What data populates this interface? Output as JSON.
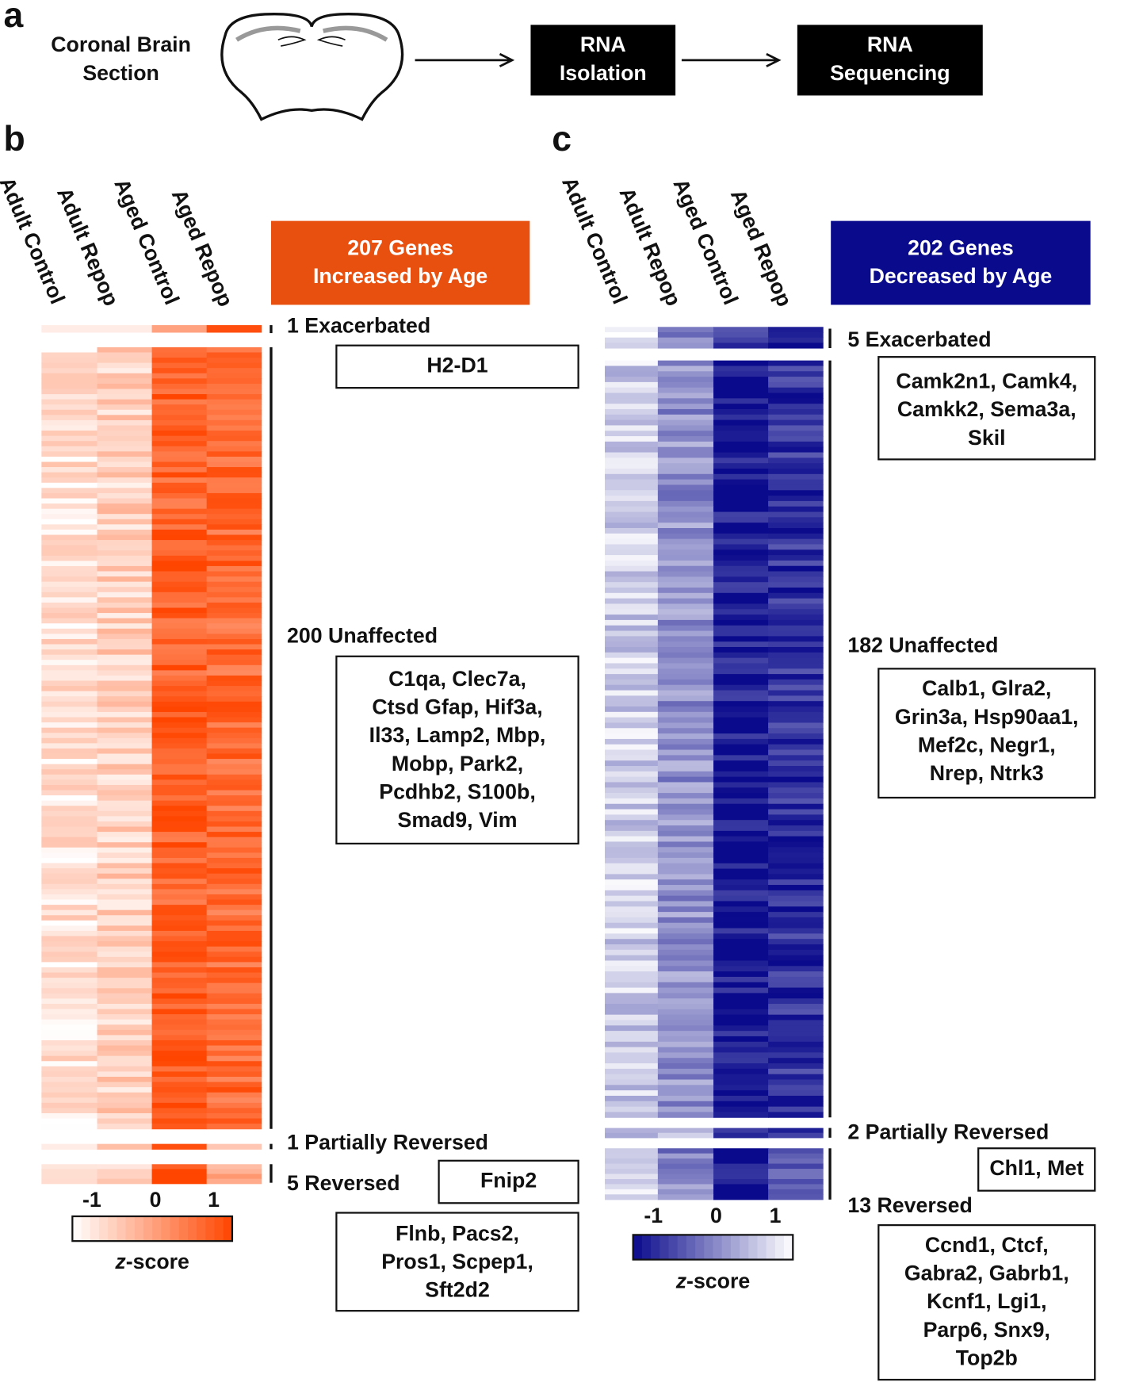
{
  "panel_a": {
    "label": "a",
    "source": [
      "Coronal Brain",
      "Section"
    ],
    "step1": [
      "RNA",
      "Isolation"
    ],
    "step2": [
      "RNA",
      "Sequencing"
    ]
  },
  "panel_b": {
    "label": "b",
    "columns": [
      "Adult Control",
      "Adult Repop",
      "Aged Control",
      "Aged Repop"
    ],
    "header": [
      "207 Genes",
      "Increased by Age"
    ],
    "groups": [
      {
        "label": "1 Exacerbated",
        "genes": [
          "H2-D1"
        ]
      },
      {
        "label": "200 Unaffected",
        "genes": [
          "C1qa, Clec7a,",
          "Ctsd Gfap, Hif3a,",
          "Il33, Lamp2, Mbp,",
          "Mobp, Park2,",
          "Pcdhb2, S100b,",
          "Smad9, Vim"
        ]
      },
      {
        "label": "1 Partially Reversed",
        "genes": [
          "Fnip2"
        ]
      },
      {
        "label": "5 Reversed",
        "genes": [
          "Flnb, Pacs2,",
          "Pros1, Scpep1,",
          "Sft2d2"
        ]
      }
    ],
    "colorbar": {
      "ticks": [
        -1,
        0,
        1
      ],
      "label_italic": "z",
      "label_rest": "-score"
    }
  },
  "panel_c": {
    "label": "c",
    "columns": [
      "Adult Control",
      "Adult Repop",
      "Aged Control",
      "Aged Repop"
    ],
    "header": [
      "202 Genes",
      "Decreased by Age"
    ],
    "groups": [
      {
        "label": "5 Exacerbated",
        "genes": [
          "Camk2n1, Camk4,",
          "Camkk2, Sema3a,",
          "Skil"
        ]
      },
      {
        "label": "182 Unaffected",
        "genes": [
          "Calb1, Glra2,",
          "Grin3a, Hsp90aa1,",
          "Mef2c, Negr1,",
          "Nrep, Ntrk3"
        ]
      },
      {
        "label": "2 Partially Reversed",
        "genes": [
          "Chl1, Met"
        ]
      },
      {
        "label": "13 Reversed",
        "genes": [
          "Ccnd1, Ctcf,",
          "Gabra2, Gabrb1,",
          "Kcnf1, Lgi1,",
          "Parp6, Snx9,",
          "Top2b"
        ]
      }
    ],
    "colorbar": {
      "ticks": [
        -1,
        0,
        1
      ],
      "label_italic": "z",
      "label_rest": "-score"
    }
  }
}
